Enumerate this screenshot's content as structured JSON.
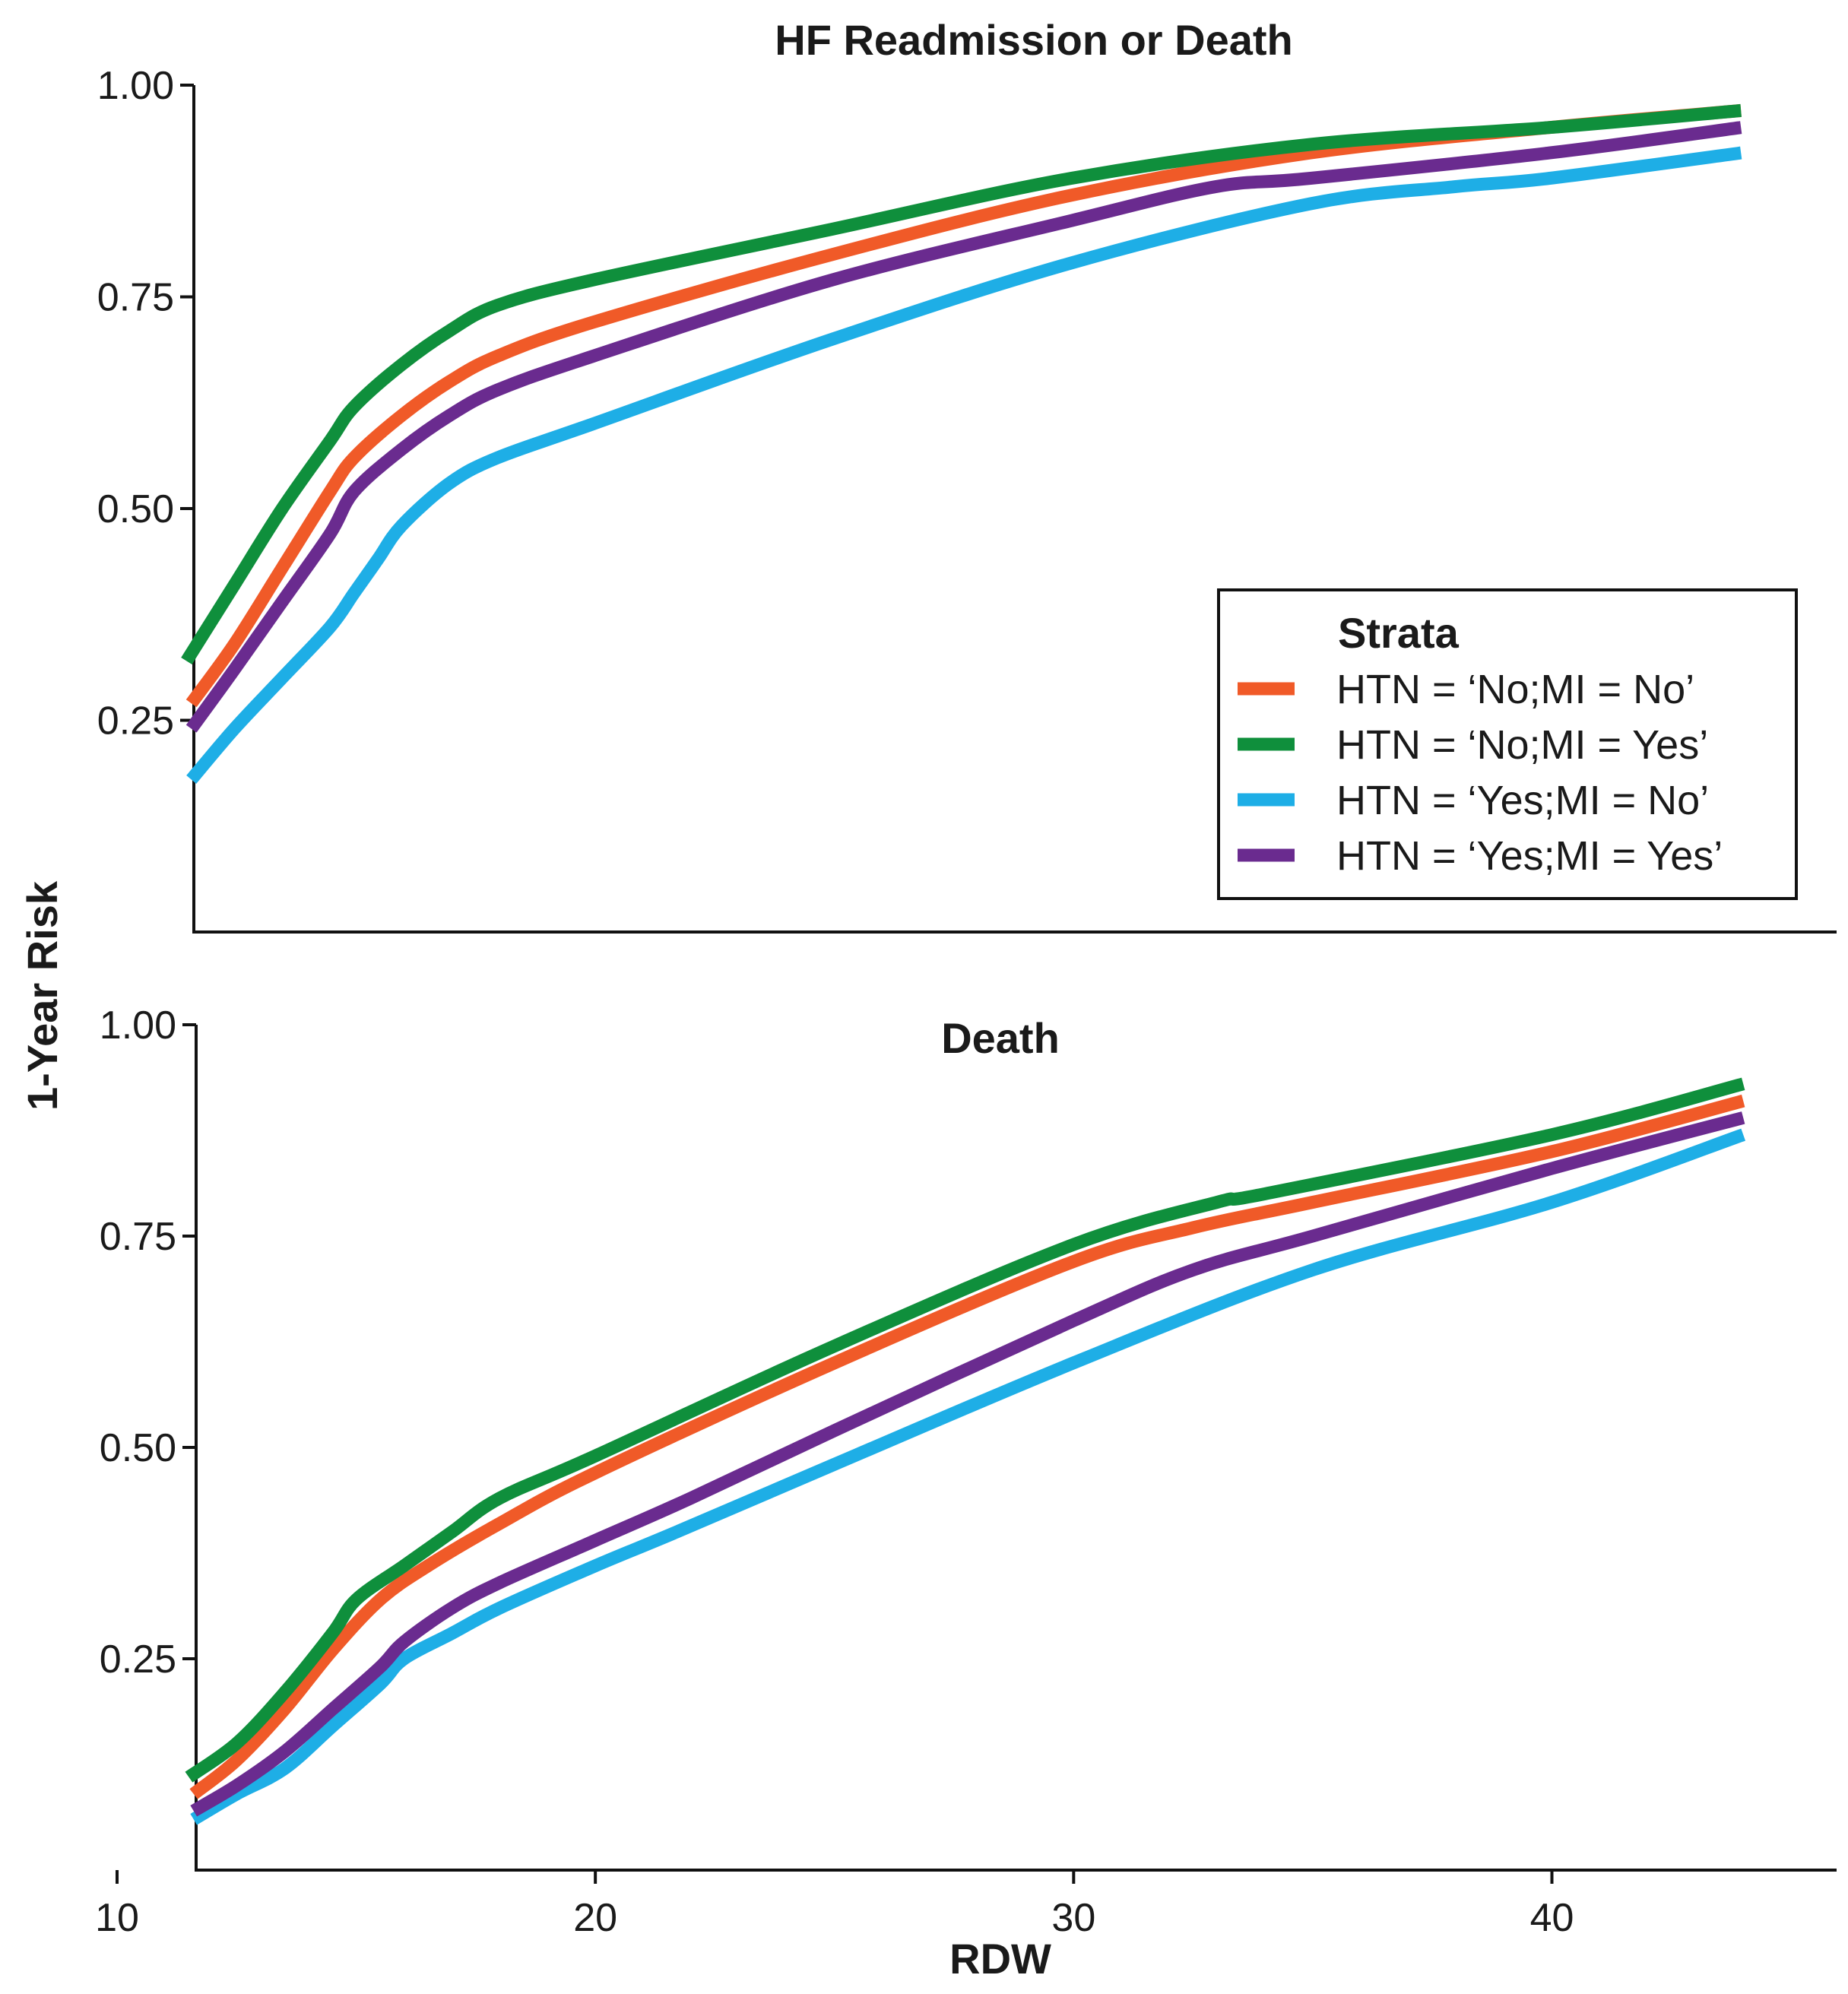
{
  "chart_data": [
    {
      "type": "line",
      "title": "HF Readmission or Death",
      "xlabel": "RDW",
      "ylabel": "1-Year Risk",
      "xlim": [
        10,
        46
      ],
      "ylim": [
        0.0,
        1.0
      ],
      "yticks": [
        "0.25",
        "0.50",
        "0.75",
        "1.00"
      ],
      "legend": {
        "title": "Strata",
        "position": "right"
      },
      "series": [
        {
          "name": "HTN = ‘No;MI = No’",
          "color": "#f05a28",
          "x": [
            11.6,
            12.5,
            13.5,
            14.5,
            15.0,
            16.0,
            17.0,
            18.0,
            20.0,
            25.0,
            30.0,
            35.0,
            40.0,
            44.0
          ],
          "y": [
            0.27,
            0.34,
            0.43,
            0.52,
            0.56,
            0.61,
            0.65,
            0.68,
            0.72,
            0.8,
            0.87,
            0.92,
            0.95,
            0.97
          ]
        },
        {
          "name": "HTN = ‘No;MI = Yes’",
          "color": "#0f8f3c",
          "x": [
            11.5,
            12.5,
            13.5,
            14.5,
            15.0,
            16.0,
            17.0,
            18.0,
            20.0,
            25.0,
            30.0,
            35.0,
            40.0,
            44.0
          ],
          "y": [
            0.32,
            0.41,
            0.5,
            0.58,
            0.62,
            0.67,
            0.71,
            0.74,
            0.77,
            0.83,
            0.89,
            0.93,
            0.95,
            0.97
          ]
        },
        {
          "name": "HTN = ‘Yes;MI = No’",
          "color": "#1eaee6",
          "x": [
            11.6,
            12.5,
            13.5,
            14.5,
            15.0,
            15.5,
            16.0,
            17.0,
            18.0,
            20.0,
            25.0,
            30.0,
            35.0,
            38.0,
            40.0,
            44.0
          ],
          "y": [
            0.18,
            0.24,
            0.3,
            0.36,
            0.4,
            0.44,
            0.48,
            0.53,
            0.56,
            0.6,
            0.7,
            0.79,
            0.86,
            0.88,
            0.89,
            0.92
          ]
        },
        {
          "name": "HTN = ‘Yes;MI = Yes’",
          "color": "#6a2b8f",
          "x": [
            11.6,
            12.5,
            13.5,
            14.5,
            15.0,
            16.0,
            17.0,
            18.0,
            20.0,
            25.0,
            30.0,
            33.0,
            35.0,
            40.0,
            44.0
          ],
          "y": [
            0.24,
            0.31,
            0.39,
            0.47,
            0.52,
            0.57,
            0.61,
            0.64,
            0.68,
            0.77,
            0.84,
            0.88,
            0.89,
            0.92,
            0.95
          ]
        }
      ]
    },
    {
      "type": "line",
      "title": "Death",
      "xlabel": "RDW",
      "ylabel": "1-Year Risk",
      "xlim": [
        10,
        46
      ],
      "ylim": [
        0.0,
        1.0
      ],
      "xticks": [
        "10",
        "20",
        "30",
        "40"
      ],
      "yticks": [
        "0.25",
        "0.50",
        "0.75",
        "1.00"
      ],
      "series": [
        {
          "name": "HTN = ‘No;MI = No’",
          "color": "#f05a28",
          "x": [
            11.6,
            12.5,
            13.5,
            14.5,
            15.5,
            16.5,
            18.0,
            20.0,
            25.0,
            30.0,
            32.5,
            35.0,
            40.0,
            44.0
          ],
          "y": [
            0.09,
            0.13,
            0.19,
            0.26,
            0.32,
            0.36,
            0.41,
            0.47,
            0.6,
            0.72,
            0.76,
            0.79,
            0.85,
            0.91
          ]
        },
        {
          "name": "HTN = ‘No;MI = Yes’",
          "color": "#0f8f3c",
          "x": [
            11.5,
            12.5,
            13.5,
            14.5,
            15.0,
            16.0,
            17.0,
            18.0,
            20.0,
            25.0,
            30.0,
            33.0,
            34.0,
            40.0,
            44.0
          ],
          "y": [
            0.11,
            0.15,
            0.21,
            0.28,
            0.32,
            0.36,
            0.4,
            0.44,
            0.49,
            0.62,
            0.74,
            0.79,
            0.8,
            0.87,
            0.93
          ]
        },
        {
          "name": "HTN = ‘Yes;MI = No’",
          "color": "#1eaee6",
          "x": [
            11.6,
            12.5,
            13.5,
            14.5,
            15.5,
            16.0,
            17.0,
            18.0,
            20.0,
            21.7,
            25.0,
            30.0,
            35.0,
            40.0,
            44.0
          ],
          "y": [
            0.06,
            0.09,
            0.12,
            0.17,
            0.22,
            0.25,
            0.28,
            0.31,
            0.36,
            0.4,
            0.48,
            0.6,
            0.71,
            0.79,
            0.87
          ]
        },
        {
          "name": "HTN = ‘Yes;MI = Yes’",
          "color": "#6a2b8f",
          "x": [
            11.6,
            12.5,
            13.5,
            14.5,
            15.5,
            16.0,
            17.0,
            18.0,
            20.0,
            22.0,
            25.0,
            30.0,
            32.5,
            35.0,
            40.0,
            44.0
          ],
          "y": [
            0.07,
            0.1,
            0.14,
            0.19,
            0.24,
            0.27,
            0.31,
            0.34,
            0.39,
            0.44,
            0.52,
            0.65,
            0.71,
            0.75,
            0.83,
            0.89
          ]
        }
      ]
    }
  ]
}
